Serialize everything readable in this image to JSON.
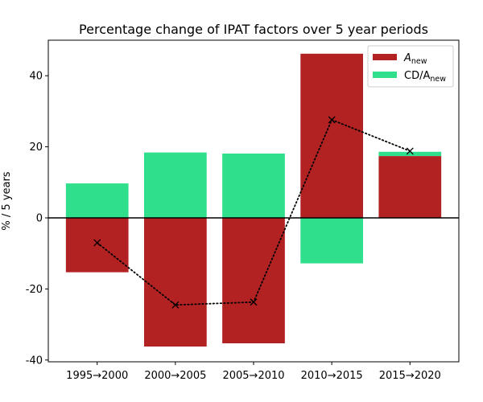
{
  "chart_data": {
    "type": "bar",
    "title": "Percentage change of IPAT factors over 5 year periods",
    "xlabel": "",
    "ylabel": "% / 5 years",
    "categories": [
      "1995→2000",
      "2000→2005",
      "2005→2010",
      "2010→2015",
      "2015→2020"
    ],
    "series": [
      {
        "name": "A_new",
        "name_main": "A",
        "name_sub": "new",
        "color": "#b22222",
        "values": [
          -15.3,
          -36.2,
          -35.3,
          46.2,
          17.4
        ]
      },
      {
        "name": "CD/A_new",
        "name_main": "CD/A",
        "name_sub": "new",
        "color": "#2fdf8c",
        "values": [
          9.7,
          18.4,
          18.1,
          -12.8,
          1.2
        ]
      }
    ],
    "line": {
      "style": "dotted",
      "marker": "x",
      "color": "#000000",
      "values": [
        -7.0,
        -24.5,
        -23.7,
        27.6,
        18.8
      ]
    },
    "ylim": [
      -40.5,
      50
    ],
    "yticks": [
      -40,
      -20,
      0,
      20,
      40
    ],
    "zero_line": true,
    "grid": false,
    "legend_position": "top-right"
  }
}
